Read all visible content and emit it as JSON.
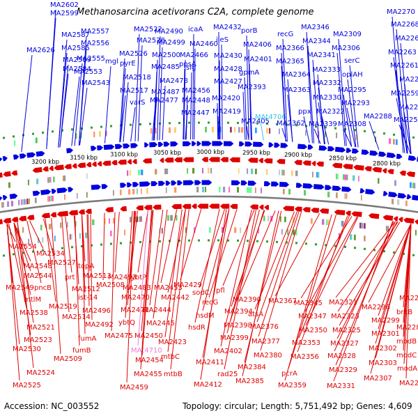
{
  "title": "Methanosarcina acetivorans C2A, complete genome",
  "footer": {
    "accession": "Accession: NC_003552",
    "summary": "Topology: circular; Length: 5,751,492 bp; Genes: 4,609"
  },
  "colors": {
    "forward": "#0000e0",
    "reverse": "#e00000",
    "forward_rna": "#33c8e6",
    "reverse_rna": "#f07ad0",
    "backbone": "#7a7a7a"
  },
  "kbp_labels": [
    "3200 kbp",
    "3150 kbp",
    "3100 kbp",
    "3050 kbp",
    "3000 kbp",
    "2950 kbp",
    "2900 kbp",
    "2850 kbp",
    "2800 kbp"
  ],
  "forward_genes": [
    "MA2602",
    "MA2599",
    "MA2587",
    "MA2585",
    "MA2626",
    "MA2589",
    "MA2584",
    "MA2557",
    "MA2556",
    "MA2555",
    "MA2553",
    "MA2543",
    "MA2522",
    "MA2528",
    "mgl",
    "MA2526",
    "pyrE",
    "MA2518",
    "MA2517",
    "MA2490",
    "MA2499",
    "MA2500",
    "MA2485",
    "MA2478",
    "MA2487",
    "MA2477",
    "varS",
    "icaA",
    "MA2460",
    "MA2466",
    "slg",
    "ppsA",
    "MA2456",
    "MA2448",
    "MA2447",
    "MA2432",
    "ileS",
    "MA2430",
    "MA2428",
    "MA2427",
    "MA2420",
    "MA2419",
    "porB",
    "MA2406",
    "MA2401",
    "gpmA",
    "MA2393",
    "MA2405",
    "MAt4706",
    "recG",
    "MA2366",
    "MA2365",
    "MA2364",
    "MA2363",
    "MA2362",
    "MA2346",
    "MA2344",
    "MA2341",
    "MA2333",
    "MA2332",
    "MA2330",
    "ppx",
    "MA2339",
    "MA2322",
    "MA2309",
    "MA2306",
    "serC",
    "oplAH",
    "MA2295",
    "MA2293",
    "MA2308",
    "MA2288",
    "MA2270",
    "MA2268",
    "MA2266",
    "MA2263",
    "MA2261",
    "MA2260",
    "MA2259",
    "MA2258",
    "MA2257"
  ],
  "reverse_genes": [
    "MA2554",
    "MA2534",
    "MA2548",
    "MA2527",
    "topA",
    "MA2544",
    "prt",
    "MA2513",
    "MA2493",
    "ybtP",
    "MA2549",
    "pncB",
    "MA2512",
    "MA2508",
    "MA2483",
    "MA2453",
    "mtlM",
    "ist-14",
    "MA2470",
    "MA2442",
    "MA2429",
    "sodC",
    "pfl",
    "MA2538",
    "MA2519",
    "MA2496",
    "MA2471",
    "MA2444",
    "recG",
    "MA2390",
    "MA2367",
    "MA2514",
    "MA2492",
    "ybtQ",
    "MA2445",
    "hsdM",
    "MA2394",
    "atsA",
    "MA2345",
    "MA2321",
    "MA2274",
    "MA2521",
    "fumA",
    "MA2475",
    "MA2450",
    "hsdR",
    "MA2398",
    "MA2376",
    "MA2347",
    "MA2323",
    "MA2296",
    "brkB",
    "MA2523",
    "fumB",
    "MA2423",
    "MA2399",
    "MA2377",
    "MA2350",
    "MA2325",
    "MA2299",
    "MA2284",
    "MA2530",
    "MA2509",
    "MAt4710",
    "mtbC",
    "MA2402",
    "MA2380",
    "MA2353",
    "MA2327",
    "MA2301",
    "modB",
    "MA2454",
    "MA2411",
    "MA2384",
    "MA2356",
    "MA2328",
    "MA2302",
    "modC",
    "MA2524",
    "MA2455",
    "mtbB",
    "rad25",
    "pcrA",
    "MA2329",
    "MA2303",
    "modA",
    "MA2525",
    "MA2459",
    "MA2412",
    "MA2385",
    "MA2359",
    "MA2331",
    "MA2307",
    "MA2286"
  ]
}
